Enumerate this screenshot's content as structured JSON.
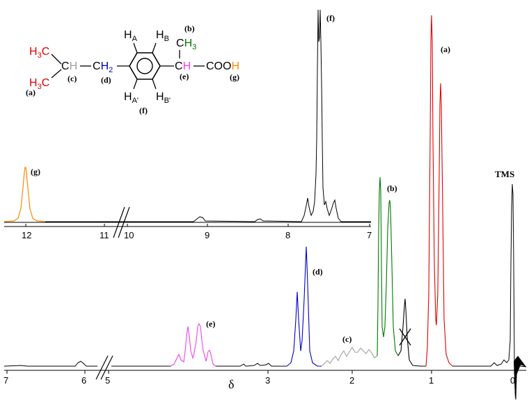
{
  "colors": {
    "a": "#e00000",
    "b": "#007700",
    "c": "#a0a0a0",
    "d": "#0000cc",
    "e": "#ee44ee",
    "f": "#000000",
    "g": "#ff8800",
    "text": "#000000"
  },
  "structure": {
    "h3c_top": "H3C",
    "h3c_bottom": "H3C",
    "ch_c": "CH",
    "ch2": "CH2",
    "h_a": "HA",
    "h_b": "HB",
    "h_a_prime": "HA'",
    "h_b_prime": "HB'",
    "ch3": "CH3",
    "ch_e": "CH",
    "cooh": "COOH",
    "labels": {
      "a": "(a)",
      "b": "(b)",
      "c": "(c)",
      "d": "(d)",
      "e": "(e)",
      "f": "(f)",
      "g": "(g)"
    }
  },
  "chart_data": {
    "type": "line",
    "xlabel": "δ",
    "upper_axis": {
      "ticks": [
        "12",
        "11",
        "10",
        "9",
        "8",
        "7"
      ],
      "break_between": [
        "11",
        "10"
      ]
    },
    "lower_axis": {
      "ticks": [
        "7",
        "6",
        "5",
        "3",
        "2",
        "1",
        "0"
      ],
      "break_between": [
        "6",
        "5"
      ]
    },
    "peak_labels": {
      "g": "(g)",
      "f": "(f)",
      "a": "(a)",
      "b": "(b)",
      "d": "(d)",
      "e": "(e)",
      "c": "(c)",
      "tms": "TMS"
    },
    "series": [
      {
        "signal": "g",
        "shift_ppm": 12.0,
        "pattern": "broad singlet"
      },
      {
        "signal": "f",
        "shift_ppm": 7.65,
        "pattern": "aromatic multiplet (AA'BB')"
      },
      {
        "signal": "e",
        "shift_ppm": 3.95,
        "pattern": "quartet"
      },
      {
        "signal": "d",
        "shift_ppm": 2.63,
        "pattern": "doublet"
      },
      {
        "signal": "c",
        "shift_ppm": 1.95,
        "pattern": "multiplet"
      },
      {
        "signal": "b",
        "shift_ppm": 1.57,
        "pattern": "doublet"
      },
      {
        "signal": "a",
        "shift_ppm": 0.95,
        "pattern": "doublet"
      },
      {
        "signal": "TMS",
        "shift_ppm": 0.0,
        "pattern": "singlet"
      }
    ]
  }
}
